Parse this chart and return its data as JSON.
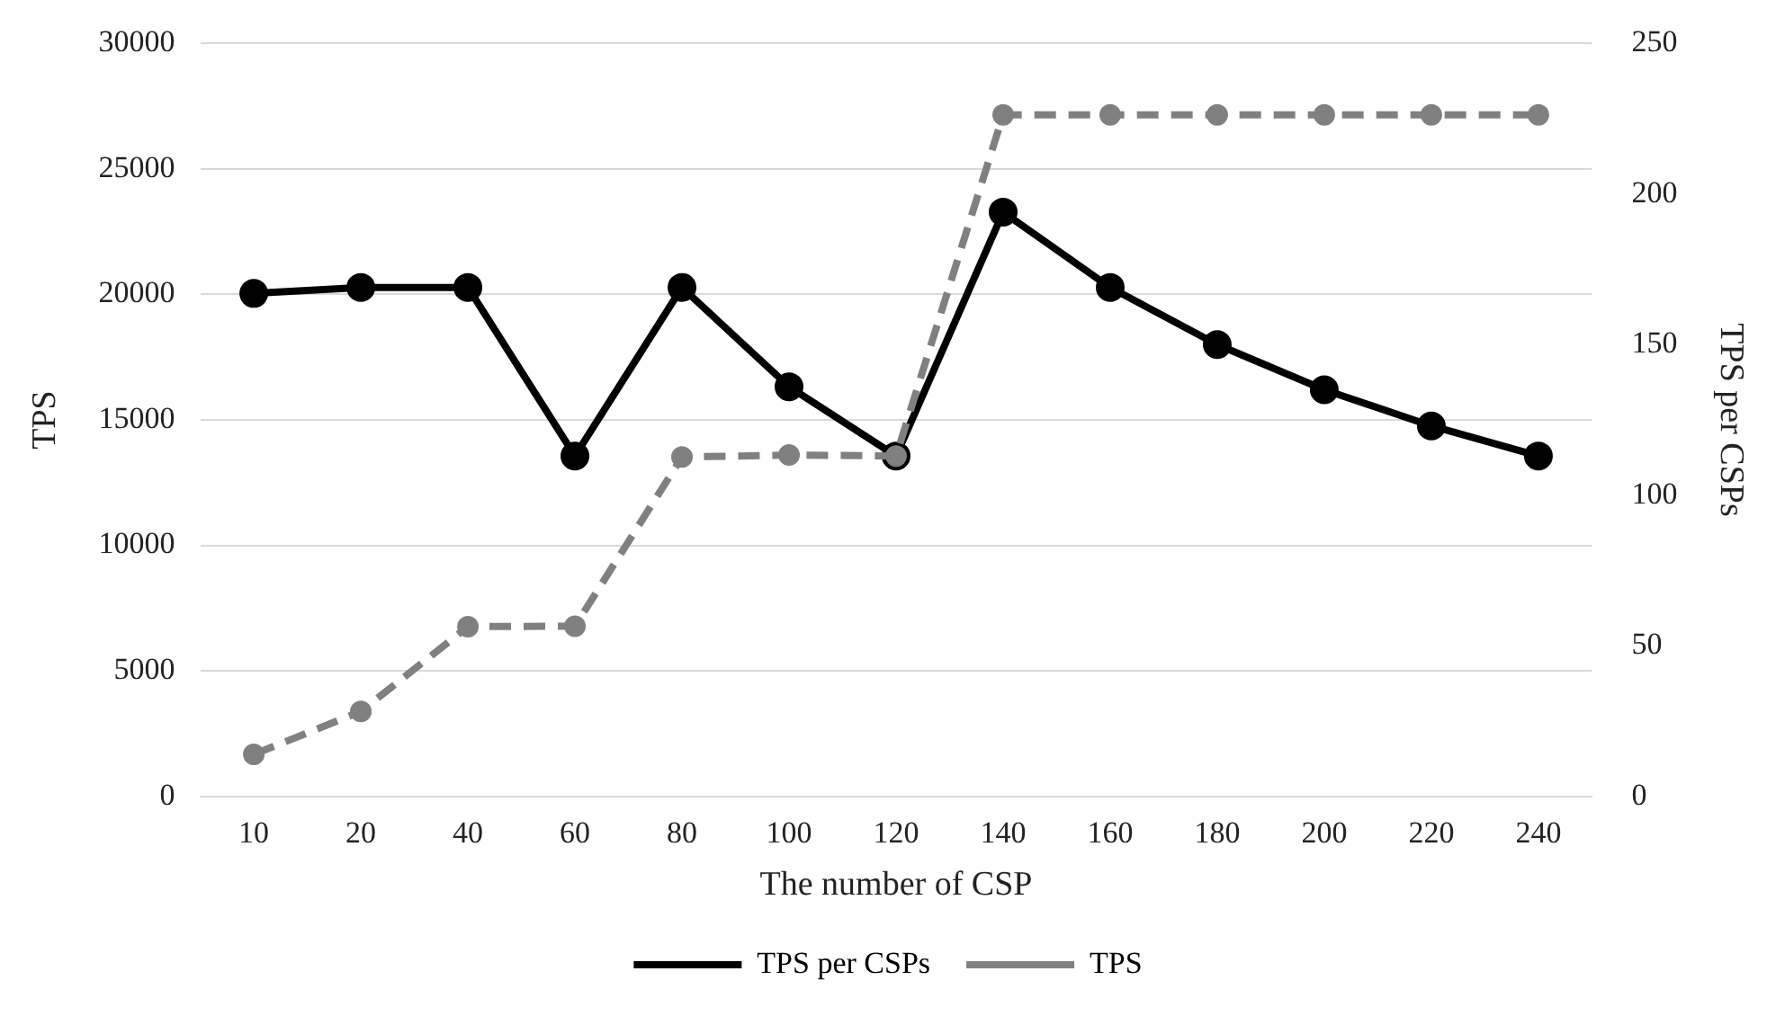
{
  "chart_data": {
    "type": "line",
    "xlabel": "The number of CSP",
    "ylabel": "TPS",
    "y2label": "TPS per CSPs",
    "categories": [
      "10",
      "20",
      "40",
      "60",
      "80",
      "100",
      "120",
      "140",
      "160",
      "180",
      "200",
      "220",
      "240"
    ],
    "series": [
      {
        "name": "TPS per CSPs",
        "color": "#000000",
        "axis": "y2",
        "line_style": "solid",
        "values": [
          167,
          169,
          169,
          113,
          169,
          136,
          113,
          194,
          169,
          150,
          135,
          123,
          113
        ]
      },
      {
        "name": "TPS",
        "color": "#808080",
        "axis": "y",
        "line_style": "dashed",
        "values": [
          1670,
          3380,
          6760,
          6780,
          13520,
          13600,
          13560,
          27160,
          27160,
          27160,
          27160,
          27160,
          27160
        ]
      }
    ],
    "ylim": [
      0,
      30000
    ],
    "yticks": [
      0,
      5000,
      10000,
      15000,
      20000,
      25000,
      30000
    ],
    "y2lim": [
      0,
      250
    ],
    "y2ticks": [
      0,
      50,
      100,
      150,
      200,
      250
    ],
    "grid": "y",
    "legend": "bottom",
    "marker": "circle"
  }
}
